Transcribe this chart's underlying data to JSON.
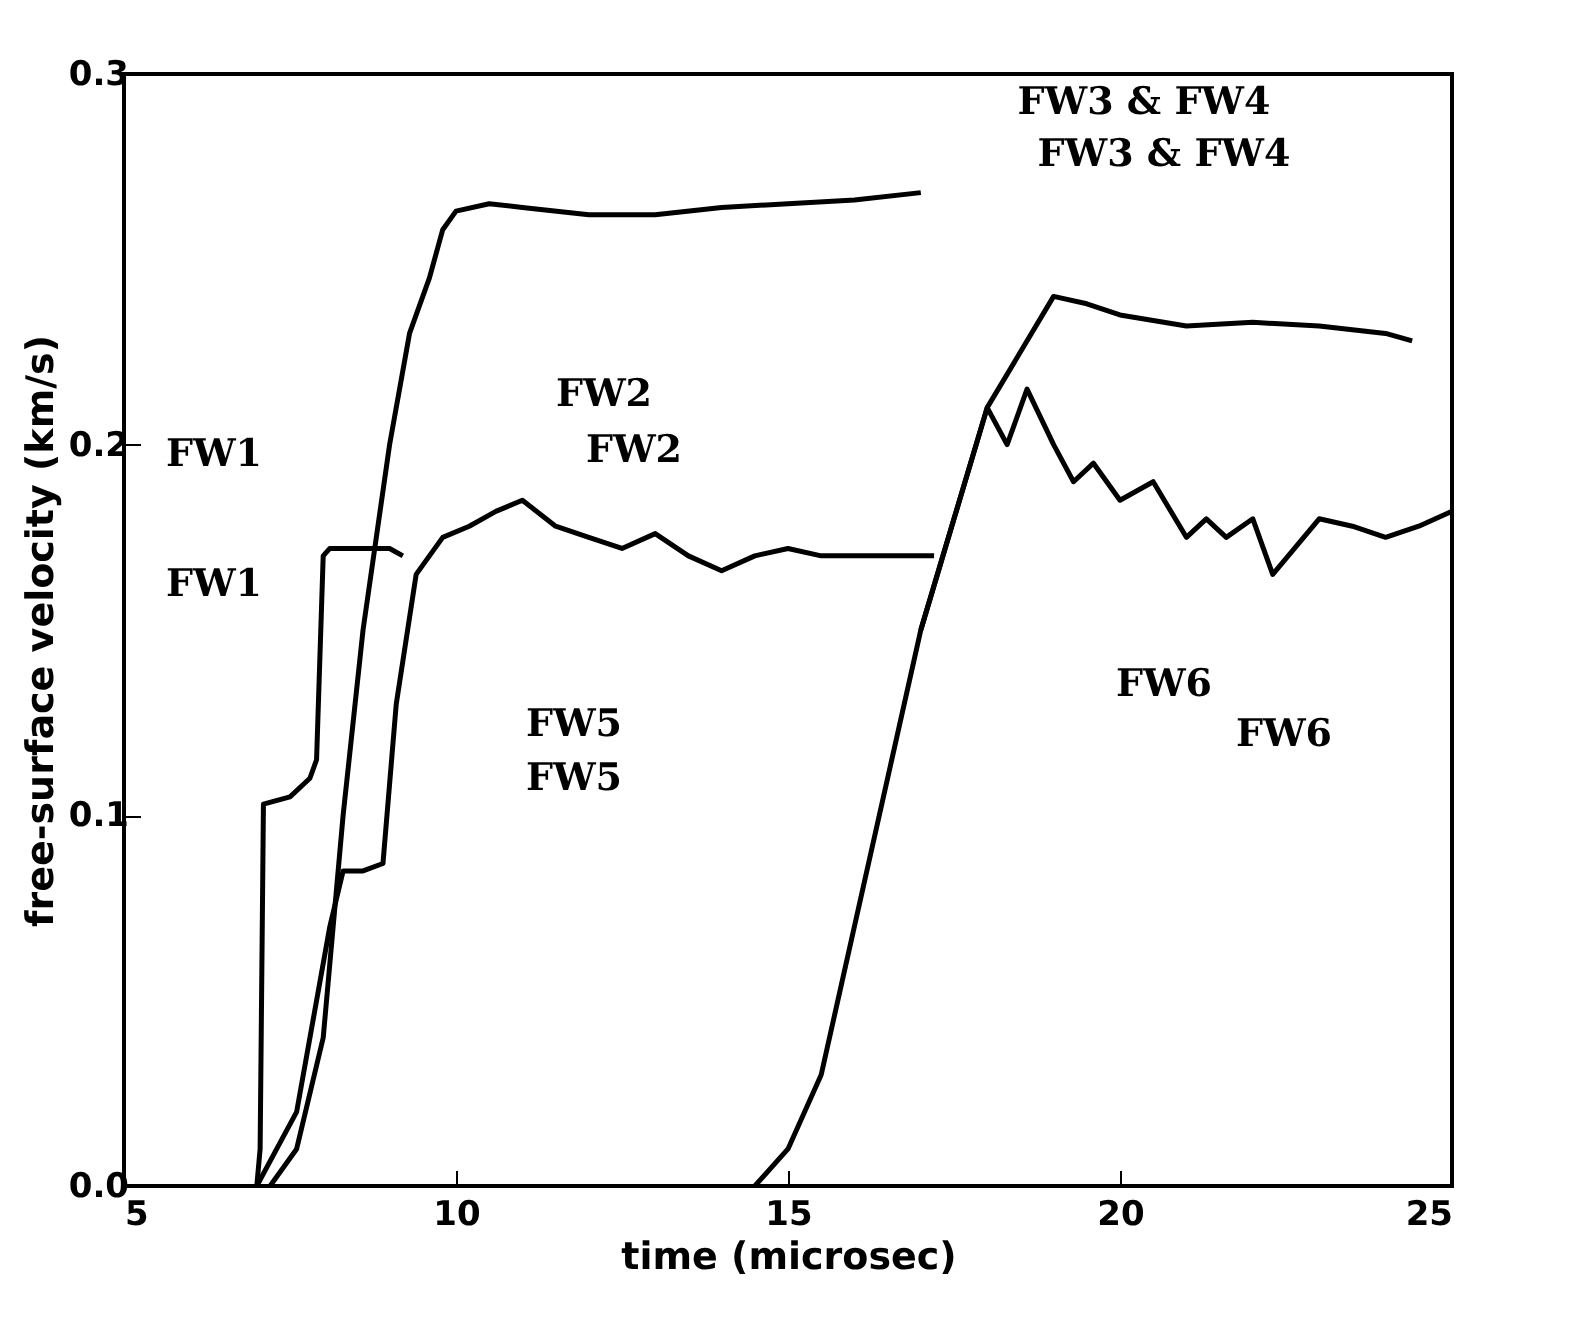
{
  "chart_data": {
    "type": "line",
    "xlabel": "time (microsec)",
    "ylabel": "free-surface velocity (km/s)",
    "xlim": [
      5,
      25
    ],
    "xticks": [
      5,
      10,
      15,
      20,
      25
    ],
    "ylim": [
      0,
      0.3
    ],
    "yticks": [
      {
        "value": 0,
        "label": "0.0"
      },
      {
        "value": 0.1,
        "label": "0.1"
      },
      {
        "value": 0.2,
        "label": "0.2"
      },
      {
        "value": 0.3,
        "label": "0.3"
      }
    ],
    "grid": false,
    "line_style": "solid",
    "series": [
      {
        "color": "#000000",
        "x": [
          7.0,
          7.05,
          7.1,
          7.5,
          7.8,
          7.9,
          8.0,
          8.1,
          8.5,
          9.0,
          9.2
        ],
        "values": [
          0,
          0.01,
          0.103,
          0.105,
          0.11,
          0.115,
          0.17,
          0.172,
          0.172,
          0.172,
          0.17
        ]
      },
      {
        "color": "#000000",
        "x": [
          7.0,
          7.3,
          7.6,
          7.9,
          8.1,
          8.3,
          8.6,
          8.9,
          9.1,
          9.4,
          9.8,
          10.2,
          10.6,
          11.0,
          11.5,
          12.0,
          12.5,
          13.0,
          13.5,
          14.0,
          14.5,
          15.0,
          15.5,
          16.0,
          16.5,
          17.0,
          17.2
        ],
        "values": [
          0,
          0.01,
          0.02,
          0.05,
          0.07,
          0.085,
          0.085,
          0.087,
          0.13,
          0.165,
          0.175,
          0.178,
          0.182,
          0.185,
          0.178,
          0.175,
          0.172,
          0.176,
          0.17,
          0.166,
          0.17,
          0.172,
          0.17,
          0.17,
          0.17,
          0.17,
          0.17
        ]
      },
      {
        "color": "#000000",
        "x": [
          7.2,
          7.6,
          8.0,
          8.3,
          8.6,
          9.0,
          9.3,
          9.6,
          9.8,
          10.0,
          10.5,
          11,
          12,
          13,
          14,
          15,
          16,
          17
        ],
        "values": [
          0,
          0.01,
          0.04,
          0.1,
          0.15,
          0.2,
          0.23,
          0.245,
          0.258,
          0.263,
          0.265,
          0.264,
          0.262,
          0.262,
          0.264,
          0.265,
          0.266,
          0.268
        ]
      },
      {
        "color": "#000000",
        "x": [
          14.5,
          15,
          15.5,
          16,
          16.5,
          17,
          17.5,
          18,
          18.5,
          19,
          19.5,
          20,
          21,
          22,
          23,
          24,
          24.4
        ],
        "values": [
          0,
          0.01,
          0.03,
          0.07,
          0.11,
          0.15,
          0.18,
          0.21,
          0.225,
          0.24,
          0.238,
          0.235,
          0.232,
          0.233,
          0.232,
          0.23,
          0.228
        ]
      },
      {
        "color": "#000000",
        "x": [
          17,
          17.5,
          18,
          18.3,
          18.6,
          19,
          19.3,
          19.6,
          20,
          20.5,
          21,
          21.3,
          21.6,
          22,
          22.3,
          23,
          23.5,
          24,
          24.5,
          25
        ],
        "values": [
          0.15,
          0.18,
          0.21,
          0.2,
          0.215,
          0.2,
          0.19,
          0.195,
          0.185,
          0.19,
          0.175,
          0.18,
          0.175,
          0.18,
          0.165,
          0.18,
          0.178,
          0.175,
          0.178,
          0.182
        ]
      }
    ],
    "annotations": [
      "FW1",
      "FW1",
      "FW2",
      "FW2",
      "FW5",
      "FW5",
      "FW3 & FW4",
      "FW3 & FW4",
      "FW6",
      "FW6"
    ]
  }
}
